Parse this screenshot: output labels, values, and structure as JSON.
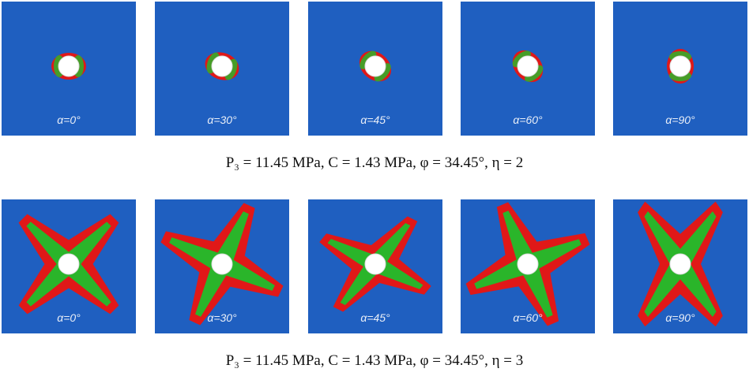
{
  "rows": [
    {
      "panels": [
        {
          "label": "α=0°"
        },
        {
          "label": "α=30°"
        },
        {
          "label": "α=45°"
        },
        {
          "label": "α=60°"
        },
        {
          "label": "α=90°"
        }
      ],
      "caption": "P₃ = 11.45 MPa, C = 1.43 MPa, φ = 34.45°, η = 2"
    },
    {
      "panels": [
        {
          "label": "α=0°"
        },
        {
          "label": "α=30°"
        },
        {
          "label": "α=45°"
        },
        {
          "label": "α=60°"
        },
        {
          "label": "α=90°"
        }
      ],
      "caption": "P₃ = 11.45 MPa, C = 1.43 MPa, φ = 34.45°, η = 3"
    }
  ]
}
